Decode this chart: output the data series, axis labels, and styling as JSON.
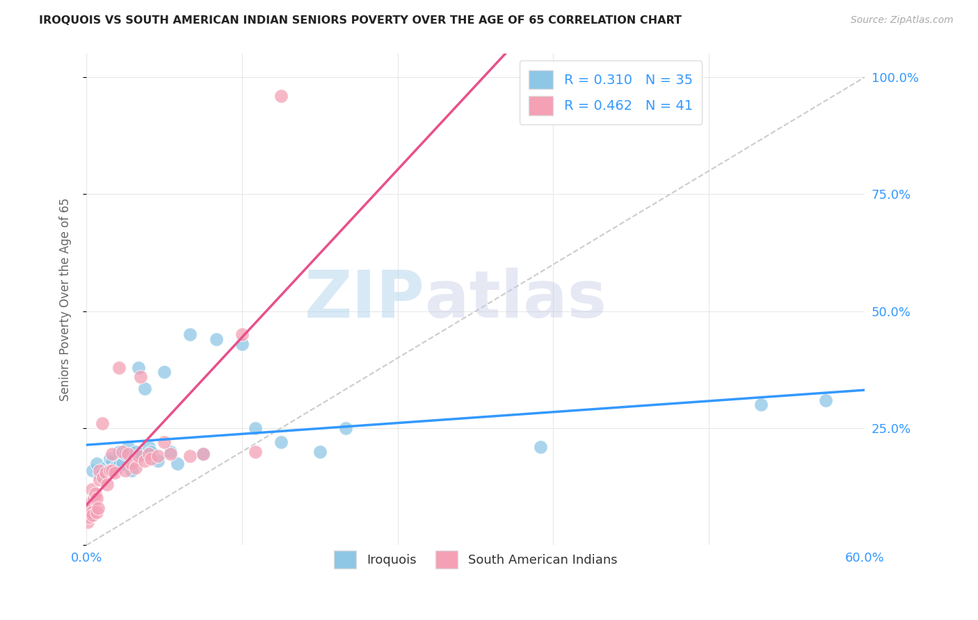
{
  "title": "IROQUOIS VS SOUTH AMERICAN INDIAN SENIORS POVERTY OVER THE AGE OF 65 CORRELATION CHART",
  "source": "Source: ZipAtlas.com",
  "ylabel": "Seniors Poverty Over the Age of 65",
  "watermark_part1": "ZIP",
  "watermark_part2": "atlas",
  "xlim": [
    0.0,
    0.6
  ],
  "ylim": [
    0.0,
    1.05
  ],
  "xticks": [
    0.0,
    0.12,
    0.24,
    0.36,
    0.48,
    0.6
  ],
  "xtick_labels": [
    "0.0%",
    "",
    "",
    "",
    "",
    "60.0%"
  ],
  "yticks": [
    0.0,
    0.25,
    0.5,
    0.75,
    1.0
  ],
  "ytick_labels": [
    "",
    "25.0%",
    "50.0%",
    "75.0%",
    "100.0%"
  ],
  "blue_color": "#8ec6e6",
  "pink_color": "#f4a0b5",
  "blue_line_color": "#3399ff",
  "pink_line_color": "#e8508a",
  "diagonal_color": "#cccccc",
  "r_blue": 0.31,
  "n_blue": 35,
  "r_pink": 0.462,
  "n_pink": 41,
  "legend_label_blue": "Iroquois",
  "legend_label_pink": "South American Indians",
  "blue_scatter_x": [
    0.005,
    0.008,
    0.01,
    0.012,
    0.015,
    0.018,
    0.02,
    0.022,
    0.025,
    0.025,
    0.028,
    0.03,
    0.032,
    0.035,
    0.038,
    0.04,
    0.042,
    0.045,
    0.048,
    0.05,
    0.055,
    0.06,
    0.065,
    0.07,
    0.08,
    0.09,
    0.1,
    0.12,
    0.13,
    0.15,
    0.18,
    0.2,
    0.35,
    0.52,
    0.57
  ],
  "blue_scatter_y": [
    0.16,
    0.175,
    0.15,
    0.155,
    0.165,
    0.185,
    0.18,
    0.165,
    0.17,
    0.2,
    0.175,
    0.195,
    0.21,
    0.16,
    0.2,
    0.38,
    0.195,
    0.335,
    0.21,
    0.2,
    0.18,
    0.37,
    0.2,
    0.175,
    0.45,
    0.195,
    0.44,
    0.43,
    0.25,
    0.22,
    0.2,
    0.25,
    0.21,
    0.3,
    0.31
  ],
  "pink_scatter_x": [
    0.001,
    0.002,
    0.003,
    0.003,
    0.004,
    0.004,
    0.005,
    0.006,
    0.007,
    0.008,
    0.008,
    0.009,
    0.01,
    0.01,
    0.012,
    0.013,
    0.015,
    0.016,
    0.018,
    0.02,
    0.02,
    0.022,
    0.025,
    0.028,
    0.03,
    0.032,
    0.035,
    0.038,
    0.04,
    0.042,
    0.045,
    0.048,
    0.05,
    0.055,
    0.06,
    0.065,
    0.08,
    0.09,
    0.12,
    0.13,
    0.15
  ],
  "pink_scatter_y": [
    0.05,
    0.06,
    0.08,
    0.09,
    0.07,
    0.12,
    0.065,
    0.1,
    0.11,
    0.07,
    0.1,
    0.08,
    0.14,
    0.16,
    0.26,
    0.145,
    0.155,
    0.13,
    0.16,
    0.16,
    0.195,
    0.155,
    0.38,
    0.2,
    0.16,
    0.195,
    0.175,
    0.165,
    0.19,
    0.36,
    0.18,
    0.195,
    0.185,
    0.19,
    0.22,
    0.195,
    0.19,
    0.195,
    0.45,
    0.2,
    0.96
  ],
  "background_color": "#ffffff",
  "grid_color": "#e8e8e8",
  "title_color": "#222222",
  "axis_label_color": "#666666",
  "tick_color": "#3399ff",
  "source_color": "#aaaaaa"
}
